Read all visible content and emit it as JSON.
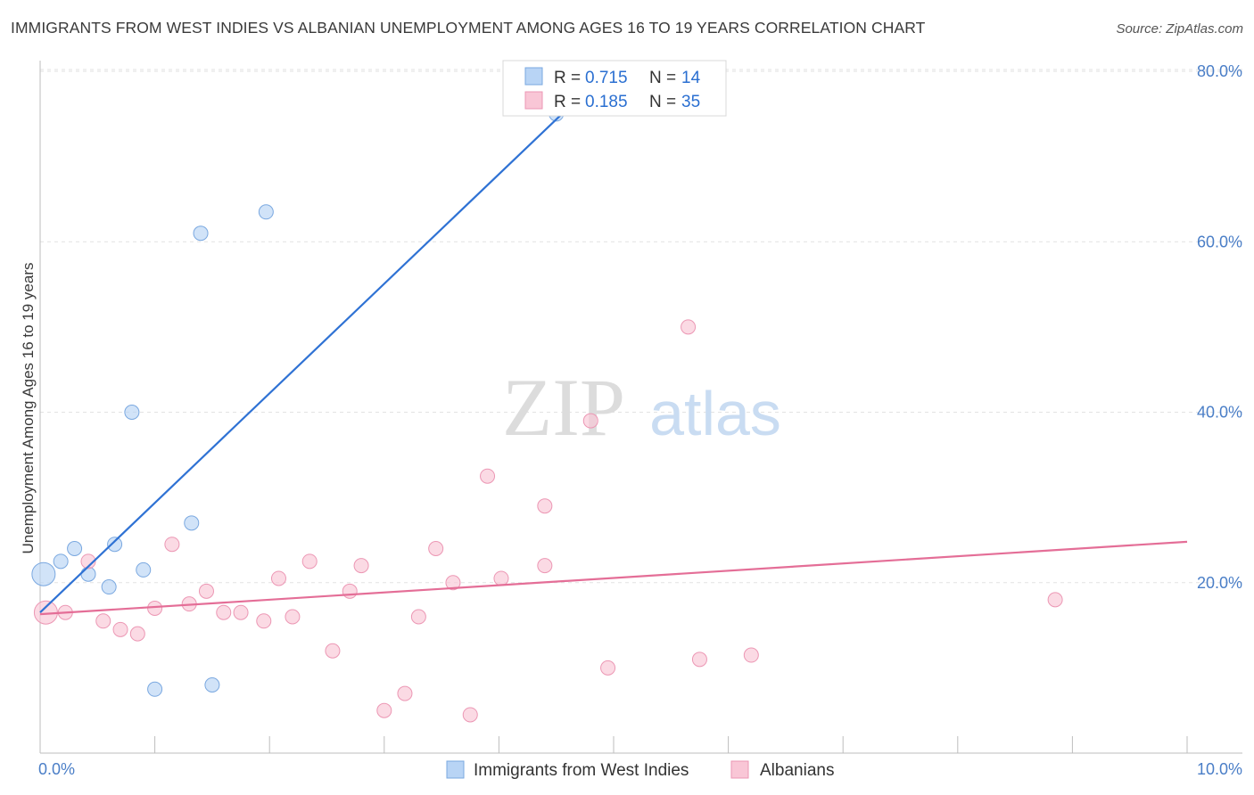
{
  "title": "IMMIGRANTS FROM WEST INDIES VS ALBANIAN UNEMPLOYMENT AMONG AGES 16 TO 19 YEARS CORRELATION CHART",
  "source": "Source: ZipAtlas.com",
  "watermark": {
    "zip": "ZIP",
    "atlas": "atlas"
  },
  "colors": {
    "blue_fill": "#b8d4f5",
    "blue_stroke": "#7aa8e0",
    "blue_line": "#2f72d4",
    "pink_fill": "#f9c6d6",
    "pink_stroke": "#ec97b4",
    "pink_line": "#e46e97",
    "accent_text": "#4a7ec7"
  },
  "legend": {
    "r_label": "R =",
    "n_label": "N =",
    "rows": [
      {
        "r": "0.715",
        "n": "14",
        "series": "blue"
      },
      {
        "r": "0.185",
        "n": "35",
        "series": "pink"
      }
    ]
  },
  "chart_data": {
    "type": "scatter",
    "title": "IMMIGRANTS FROM WEST INDIES VS ALBANIAN UNEMPLOYMENT AMONG AGES 16 TO 19 YEARS CORRELATION CHART",
    "xlabel": "",
    "ylabel": "Unemployment Among Ages 16 to 19 years",
    "xlim": [
      0,
      10
    ],
    "ylim": [
      0,
      82
    ],
    "x_tick_labels": [
      "0.0%",
      "10.0%"
    ],
    "y_ticks": [
      20,
      40,
      60,
      80
    ],
    "y_tick_labels": [
      "20.0%",
      "40.0%",
      "60.0%",
      "80.0%"
    ],
    "grid": true,
    "legend_position": "top-center",
    "series": [
      {
        "name": "Immigrants from West Indies",
        "color": "blue",
        "r": 0.715,
        "n": 14,
        "trend": {
          "x": [
            0.0,
            4.9
          ],
          "y": [
            16.5,
            79.5
          ]
        },
        "points": [
          {
            "x": 0.03,
            "y": 21.0,
            "big": true
          },
          {
            "x": 0.18,
            "y": 22.5
          },
          {
            "x": 0.3,
            "y": 24.0
          },
          {
            "x": 0.42,
            "y": 21.0
          },
          {
            "x": 0.6,
            "y": 19.5
          },
          {
            "x": 0.65,
            "y": 24.5
          },
          {
            "x": 0.8,
            "y": 40.0
          },
          {
            "x": 0.9,
            "y": 21.5
          },
          {
            "x": 1.0,
            "y": 7.5
          },
          {
            "x": 1.32,
            "y": 27.0
          },
          {
            "x": 1.4,
            "y": 61.0
          },
          {
            "x": 1.5,
            "y": 8.0
          },
          {
            "x": 1.97,
            "y": 63.5
          },
          {
            "x": 4.5,
            "y": 75.0
          }
        ]
      },
      {
        "name": "Albanians",
        "color": "pink",
        "r": 0.185,
        "n": 35,
        "trend": {
          "x": [
            0.0,
            10.0
          ],
          "y": [
            16.3,
            24.8
          ]
        },
        "points": [
          {
            "x": 0.05,
            "y": 16.5,
            "big": true
          },
          {
            "x": 0.22,
            "y": 16.5
          },
          {
            "x": 0.42,
            "y": 22.5
          },
          {
            "x": 0.55,
            "y": 15.5
          },
          {
            "x": 0.7,
            "y": 14.5
          },
          {
            "x": 0.85,
            "y": 14.0
          },
          {
            "x": 1.0,
            "y": 17.0
          },
          {
            "x": 1.15,
            "y": 24.5
          },
          {
            "x": 1.3,
            "y": 17.5
          },
          {
            "x": 1.45,
            "y": 19.0
          },
          {
            "x": 1.6,
            "y": 16.5
          },
          {
            "x": 1.75,
            "y": 16.5
          },
          {
            "x": 1.95,
            "y": 15.5
          },
          {
            "x": 2.08,
            "y": 20.5
          },
          {
            "x": 2.2,
            "y": 16.0
          },
          {
            "x": 2.35,
            "y": 22.5
          },
          {
            "x": 2.55,
            "y": 12.0
          },
          {
            "x": 2.7,
            "y": 19.0
          },
          {
            "x": 2.8,
            "y": 22.0
          },
          {
            "x": 3.0,
            "y": 5.0
          },
          {
            "x": 3.18,
            "y": 7.0
          },
          {
            "x": 3.3,
            "y": 16.0
          },
          {
            "x": 3.45,
            "y": 24.0
          },
          {
            "x": 3.6,
            "y": 20.0
          },
          {
            "x": 3.75,
            "y": 4.5
          },
          {
            "x": 3.9,
            "y": 32.5
          },
          {
            "x": 4.02,
            "y": 20.5
          },
          {
            "x": 4.4,
            "y": 29.0
          },
          {
            "x": 4.4,
            "y": 22.0
          },
          {
            "x": 4.8,
            "y": 39.0
          },
          {
            "x": 4.95,
            "y": 10.0
          },
          {
            "x": 5.65,
            "y": 50.0
          },
          {
            "x": 5.75,
            "y": 11.0
          },
          {
            "x": 6.2,
            "y": 11.5
          },
          {
            "x": 8.85,
            "y": 18.0
          }
        ]
      }
    ]
  }
}
